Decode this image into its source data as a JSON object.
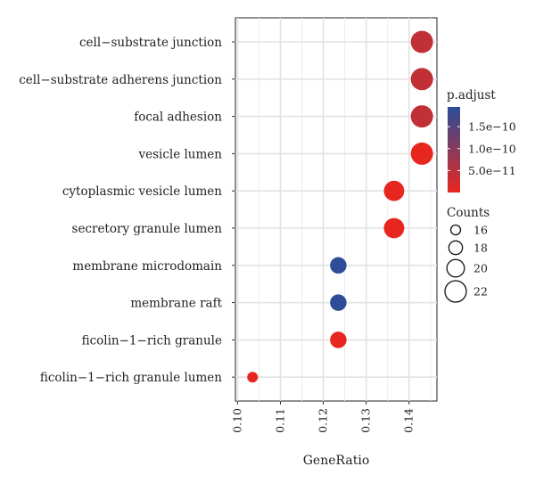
{
  "chart_data": {
    "type": "scatter",
    "xlabel": "GeneRatio",
    "x_ticks": [
      0.1,
      0.11,
      0.12,
      0.13,
      0.14
    ],
    "x_tick_labels": [
      "0.10",
      "0.11",
      "0.12",
      "0.13",
      "0.14"
    ],
    "xlim": [
      0.0995,
      0.1465
    ],
    "categories": [
      "cell−substrate junction",
      "cell−substrate adherens junction",
      "focal adhesion",
      "vesicle lumen",
      "cytoplasmic vesicle lumen",
      "secretory granule lumen",
      "membrane microdomain",
      "membrane raft",
      "ficolin−1−rich granule",
      "ficolin−1−rich granule lumen"
    ],
    "points": [
      {
        "category": "cell−substrate junction",
        "x": 0.143,
        "count": 22,
        "p_adjust": 4e-11
      },
      {
        "category": "cell−substrate adherens junction",
        "x": 0.143,
        "count": 22,
        "p_adjust": 4e-11
      },
      {
        "category": "focal adhesion",
        "x": 0.143,
        "count": 22,
        "p_adjust": 4e-11
      },
      {
        "category": "vesicle lumen",
        "x": 0.143,
        "count": 22,
        "p_adjust": 1.5e-12
      },
      {
        "category": "cytoplasmic vesicle lumen",
        "x": 0.1365,
        "count": 21,
        "p_adjust": 1.5e-12
      },
      {
        "category": "secretory granule lumen",
        "x": 0.1365,
        "count": 21,
        "p_adjust": 1.5e-12
      },
      {
        "category": "membrane microdomain",
        "x": 0.1235,
        "count": 19,
        "p_adjust": 1.9e-10
      },
      {
        "category": "membrane raft",
        "x": 0.1235,
        "count": 19,
        "p_adjust": 1.9e-10
      },
      {
        "category": "ficolin−1−rich granule",
        "x": 0.1235,
        "count": 19,
        "p_adjust": 1.5e-12
      },
      {
        "category": "ficolin−1−rich granule lumen",
        "x": 0.1035,
        "count": 16,
        "p_adjust": 1.5e-12
      }
    ],
    "grid": true,
    "legend_placement": "right",
    "color_legend": {
      "title": "p.adjust",
      "tick_values": [
        1.5e-10,
        1e-10,
        5e-11
      ],
      "tick_labels": [
        "1.5e−10",
        "1.0e−10",
        "5.0e−11"
      ],
      "range": [
        0,
        1.95e-10
      ],
      "low_color": "#e8271e",
      "high_color": "#2a4d9a"
    },
    "size_legend": {
      "title": "Counts",
      "values": [
        16,
        18,
        20,
        22
      ],
      "labels": [
        "16",
        "18",
        "20",
        "22"
      ],
      "range": [
        16,
        22
      ]
    },
    "panel_background": "#ebebeb",
    "grid_color": "#ffffff"
  }
}
